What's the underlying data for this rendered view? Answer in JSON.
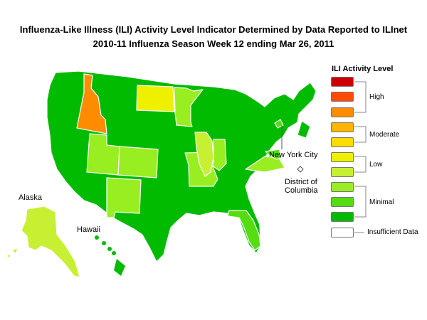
{
  "header": {
    "title_line1": "Influenza-Like Illness (ILI) Activity Level Indicator Determined by Data Reported to ILInet",
    "title_line2": "2010-11  Influenza Season Week  12 ending Mar 26, 2011"
  },
  "legend": {
    "title": "ILI Activity Level",
    "levels": [
      {
        "level": 10,
        "color": "#cc0000"
      },
      {
        "level": 9,
        "color": "#ff4b00"
      },
      {
        "level": 8,
        "color": "#ff8c00"
      },
      {
        "level": 7,
        "color": "#ffb400"
      },
      {
        "level": 6,
        "color": "#ffdc00"
      },
      {
        "level": 5,
        "color": "#eef000"
      },
      {
        "level": 4,
        "color": "#c8f032"
      },
      {
        "level": 3,
        "color": "#99ee22"
      },
      {
        "level": 2,
        "color": "#55dd11"
      },
      {
        "level": 1,
        "color": "#00bb00"
      }
    ],
    "insufficient_color": "#ffffff",
    "group_labels": {
      "high": "High",
      "moderate": "Moderate",
      "low": "Low",
      "minimal": "Minimal",
      "insufficient": "Insufficient Data"
    }
  },
  "map_labels": {
    "alaska": "Alaska",
    "hawaii": "Hawaii",
    "new_york_city": "New York City",
    "dc_line1": "District of",
    "dc_line2": "Columbia"
  },
  "colors": {
    "minimal_dark": "#00bb00",
    "minimal_mid": "#55dd11",
    "minimal_light": "#99ee22",
    "low_light": "#c8f032",
    "low": "#eef000",
    "high": "#ff8c00"
  },
  "states": {
    "idaho": "high",
    "north_dakota": "low",
    "alaska": "low_light",
    "utah": "minimal_light",
    "colorado": "minimal_light",
    "new_mexico": "minimal_light",
    "illinois": "low_light",
    "missouri": "minimal_light",
    "indiana": "minimal_light",
    "minnesota": "minimal_light",
    "virginia": "minimal_light",
    "florida": "minimal_mid",
    "new_york_city": "minimal_mid",
    "maryland": "minimal_mid",
    "district_of_columbia": "insufficient",
    "default": "minimal_dark"
  }
}
